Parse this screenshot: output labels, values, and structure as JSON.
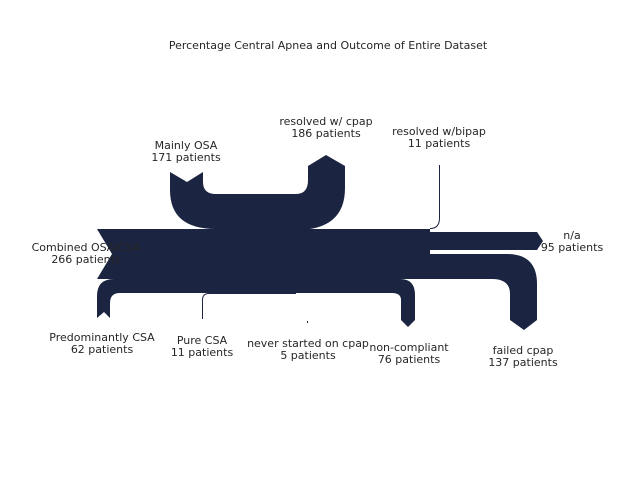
{
  "title": "Percentage Central Apnea and Outcome of Entire Dataset",
  "flow_color": "#1b2440",
  "nodes": [
    {
      "id": "combined",
      "name": "Combined OSA/CSA",
      "count": "266 patients",
      "value": 266,
      "role": "input"
    },
    {
      "id": "mainly_osa",
      "name": "Mainly OSA",
      "count": "171 patients",
      "value": 171,
      "role": "input"
    },
    {
      "id": "predominantly_csa",
      "name": "Predominantly CSA",
      "count": "62 patients",
      "value": 62,
      "role": "input"
    },
    {
      "id": "pure_csa",
      "name": "Pure CSA",
      "count": "11 patients",
      "value": 11,
      "role": "input"
    },
    {
      "id": "resolved_cpap",
      "name": "resolved w/ cpap",
      "count": "186 patients",
      "value": 186,
      "role": "output"
    },
    {
      "id": "resolved_bipap",
      "name": "resolved w/bipap",
      "count": "11 patients",
      "value": 11,
      "role": "output"
    },
    {
      "id": "na",
      "name": "n/a",
      "count": "95 patients",
      "value": 95,
      "role": "output"
    },
    {
      "id": "never_started",
      "name": "never started on cpap",
      "count": "5 patients",
      "value": 5,
      "role": "output"
    },
    {
      "id": "non_compliant",
      "name": "non-compliant",
      "count": "76 patients",
      "value": 76,
      "role": "output"
    },
    {
      "id": "failed_cpap",
      "name": "failed cpap",
      "count": "137 patients",
      "value": 137,
      "role": "output"
    }
  ]
}
